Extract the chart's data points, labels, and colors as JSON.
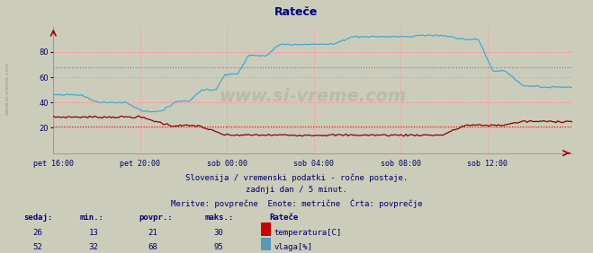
{
  "title": "Rateče",
  "title_color": "#000080",
  "bg_color": "#ccccbb",
  "grid_h_color": "#ff9999",
  "avg_temp_color": "#ff0000",
  "avg_vlaga_color": "#4488ff",
  "temp_color": "#880000",
  "vlaga_color": "#44aacc",
  "ylim": [
    0,
    100
  ],
  "yticks": [
    20,
    40,
    60,
    80
  ],
  "xtick_labels": [
    "pet 16:00",
    "pet 20:00",
    "sob 00:00",
    "sob 04:00",
    "sob 08:00",
    "sob 12:00"
  ],
  "subtitle_line1": "Slovenija / vremenski podatki - ročne postaje.",
  "subtitle_line2": "zadnji dan / 5 minut.",
  "subtitle_line3": "Meritve: povprečne  Enote: metrične  Črta: povprečje",
  "subtitle_color": "#000066",
  "watermark": "www.si-vreme.com",
  "watermark_color": "#bbbbaa",
  "legend_title": "Rateče",
  "legend_title_color": "#000080",
  "legend_label_color": "#000066",
  "table_header_color": "#000080",
  "table_value_color": "#000066",
  "table_headers": [
    "sedaj:",
    "min.:",
    "povpr.:",
    "maks.:"
  ],
  "temp_row": [
    26,
    13,
    21,
    30
  ],
  "vlaga_row": [
    52,
    32,
    68,
    95
  ],
  "temp_avg": 21,
  "vlaga_avg": 68,
  "temp_label": "temperatura[C]",
  "vlaga_label": "vlaga[%]",
  "temp_rect_color": "#cc0000",
  "vlaga_rect_color": "#5599bb",
  "n_points": 288,
  "xtick_positions": [
    0,
    48,
    96,
    144,
    192,
    240
  ]
}
